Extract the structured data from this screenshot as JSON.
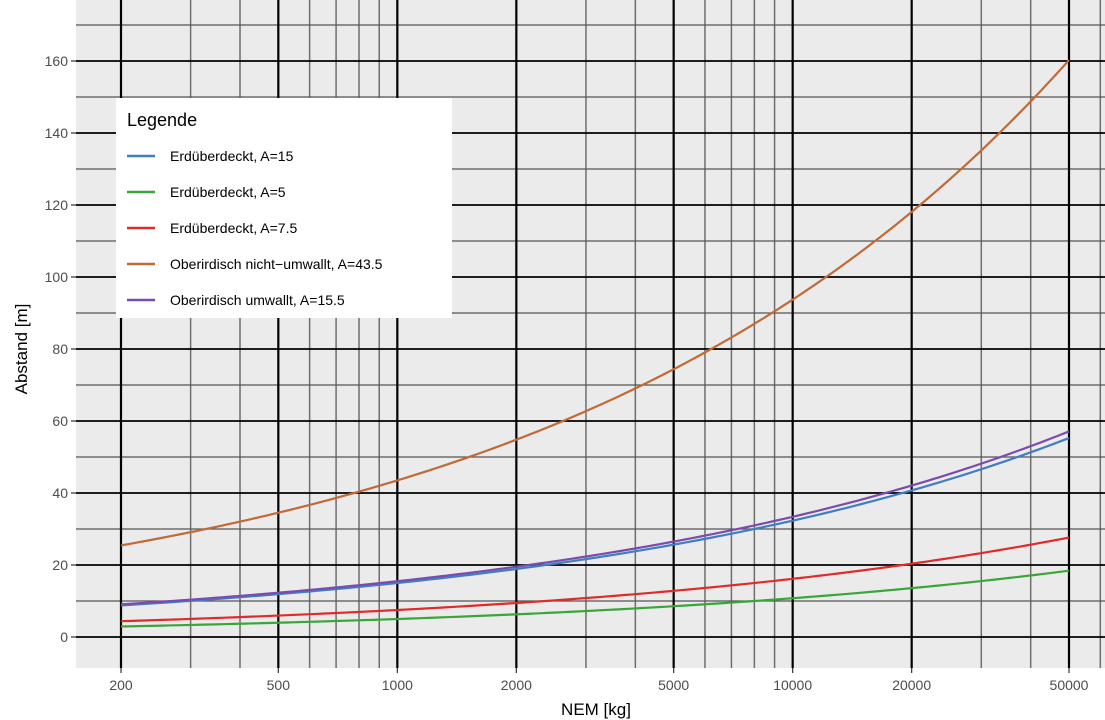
{
  "chart_data": {
    "type": "line",
    "xlabel": "NEM [kg]",
    "ylabel": "Abstand [m]",
    "x_scale": "log10",
    "xlim": [
      200,
      50000
    ],
    "ylim": [
      0,
      160
    ],
    "x_ticks": [
      200,
      500,
      1000,
      2000,
      5000,
      10000,
      20000,
      50000
    ],
    "x_tick_labels": [
      "200",
      "500",
      "1000",
      "2000",
      "5000",
      "10000",
      "20000",
      "50000"
    ],
    "y_ticks": [
      0,
      20,
      40,
      60,
      80,
      100,
      120,
      140,
      160
    ],
    "y_tick_labels": [
      "0",
      "20",
      "40",
      "60",
      "80",
      "100",
      "120",
      "140",
      "160"
    ],
    "grid": true,
    "legend": {
      "title": "Legende",
      "position": "top-left"
    },
    "series": [
      {
        "name": "Erdüberdeckt, A=15",
        "color": "#3f7fc0",
        "x": [
          200,
          500,
          1000,
          2000,
          5000,
          10000,
          20000,
          50000
        ],
        "y": [
          8.8,
          11.9,
          15.0,
          18.9,
          25.6,
          32.3,
          40.6,
          55.1
        ]
      },
      {
        "name": "Erdüberdeckt, A=5",
        "color": "#3aa63a",
        "x": [
          200,
          500,
          1000,
          2000,
          5000,
          10000,
          20000,
          50000
        ],
        "y": [
          2.9,
          4.0,
          5.0,
          6.3,
          8.5,
          10.8,
          13.6,
          18.4
        ]
      },
      {
        "name": "Erdüberdeckt, A=7.5",
        "color": "#e02b2b",
        "x": [
          200,
          500,
          1000,
          2000,
          5000,
          10000,
          20000,
          50000
        ],
        "y": [
          4.4,
          5.9,
          7.5,
          9.4,
          12.8,
          16.2,
          20.3,
          27.6
        ]
      },
      {
        "name": "Oberirdisch nicht−umwallt, A=43.5",
        "color": "#c06a36",
        "x": [
          200,
          500,
          1000,
          2000,
          5000,
          10000,
          20000,
          50000
        ],
        "y": [
          25.4,
          34.5,
          43.5,
          54.8,
          74.4,
          93.7,
          118.1,
          160.0
        ]
      },
      {
        "name": "Oberirdisch umwallt, A=15.5",
        "color": "#7b4bb0",
        "x": [
          200,
          500,
          1000,
          2000,
          5000,
          10000,
          20000,
          50000
        ],
        "y": [
          9.1,
          12.3,
          15.5,
          19.5,
          26.5,
          33.4,
          42.1,
          57.0
        ]
      }
    ]
  }
}
